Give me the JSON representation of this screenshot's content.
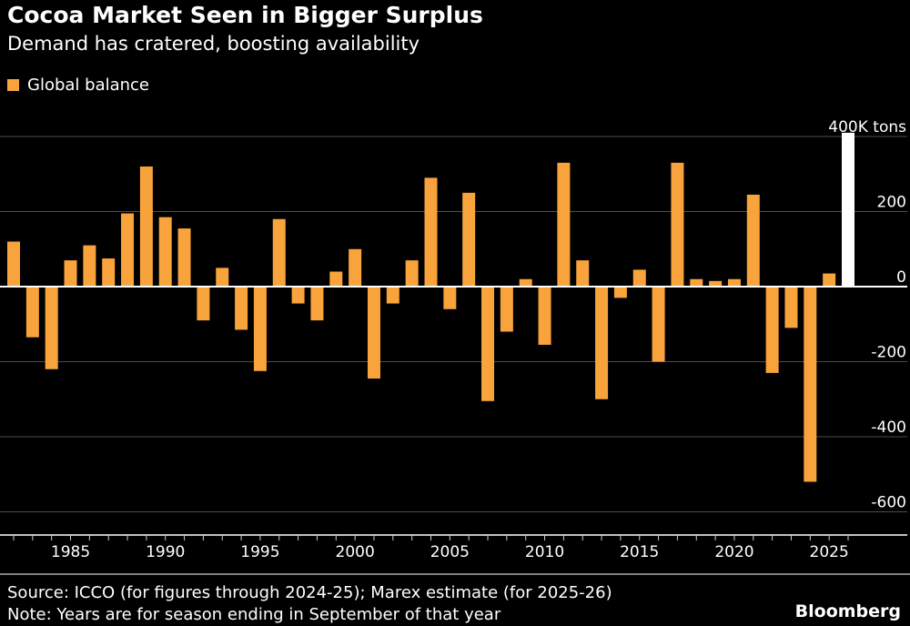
{
  "header": {
    "title": "Cocoa Market Seen in Bigger Surplus",
    "subtitle": "Demand has cratered, boosting availability"
  },
  "legend": {
    "label": "Global balance",
    "color": "#F8A33B"
  },
  "footer": {
    "source": "Source: ICCO (for figures through 2024-25); Marex estimate (for 2025-26)",
    "note": "Note: Years are for season ending in September of that year",
    "brand": "Bloomberg"
  },
  "colors": {
    "background": "#000000",
    "text": "#FFFFFF",
    "bar": "#F8A33B",
    "highlight_bar": "#FFFFFF",
    "gridline": "#4D4D4D",
    "zero_line": "#FFFFFF",
    "axis_line": "#FFFFFF",
    "tick": "#CFCFCF"
  },
  "chart_data": {
    "type": "bar",
    "title": "Cocoa Market Seen in Bigger Surplus",
    "subtitle": "Demand has cratered, boosting availability",
    "series_name": "Global balance",
    "unit": "K tons",
    "xlabel": "",
    "ylabel": "",
    "ylim": [
      -660,
      450
    ],
    "grid": true,
    "legend_position": "top-left",
    "y_ticks": [
      400,
      200,
      0,
      -200,
      -400,
      -600
    ],
    "y_tick_labels": [
      "400K tons",
      "200",
      "0",
      "-200",
      "-400",
      "-600"
    ],
    "x_tick_years": [
      1985,
      1990,
      1995,
      2000,
      2005,
      2010,
      2015,
      2020,
      2025
    ],
    "highlight_year": 2026,
    "years": [
      1982,
      1983,
      1984,
      1985,
      1986,
      1987,
      1988,
      1989,
      1990,
      1991,
      1992,
      1993,
      1994,
      1995,
      1996,
      1997,
      1998,
      1999,
      2000,
      2001,
      2002,
      2003,
      2004,
      2005,
      2006,
      2007,
      2008,
      2009,
      2010,
      2011,
      2012,
      2013,
      2014,
      2015,
      2016,
      2017,
      2018,
      2019,
      2020,
      2021,
      2022,
      2023,
      2024,
      2025,
      2026
    ],
    "values": [
      120,
      -135,
      -220,
      70,
      110,
      75,
      195,
      320,
      185,
      155,
      -90,
      50,
      -115,
      -225,
      180,
      -45,
      -90,
      40,
      100,
      -245,
      -45,
      70,
      290,
      -60,
      250,
      -305,
      -120,
      20,
      -155,
      330,
      70,
      -300,
      -30,
      45,
      -200,
      330,
      20,
      15,
      20,
      245,
      -230,
      -110,
      -520,
      35,
      410
    ]
  }
}
